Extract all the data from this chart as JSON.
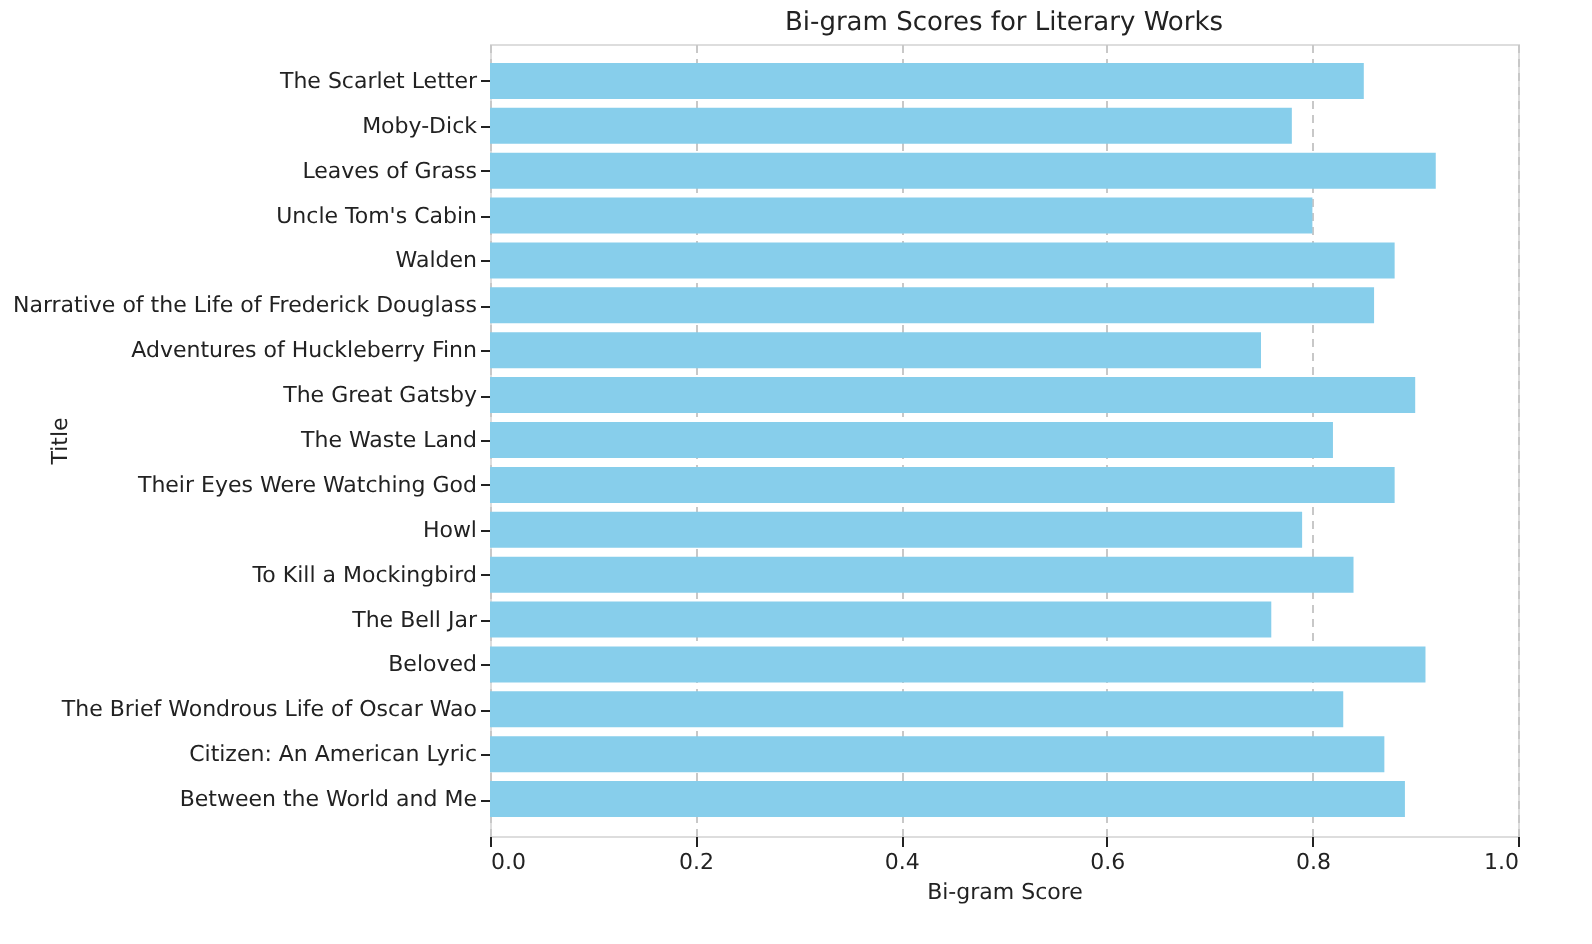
{
  "chart_data": {
    "type": "bar",
    "orientation": "horizontal",
    "title": "Bi-gram Scores for Literary Works",
    "xlabel": "Bi-gram Score",
    "ylabel": "Title",
    "categories": [
      "The Scarlet Letter",
      "Moby-Dick",
      "Leaves of Grass",
      "Uncle Tom's Cabin",
      "Walden",
      "Narrative of the Life of Frederick Douglass",
      "Adventures of Huckleberry Finn",
      "The Great Gatsby",
      "The Waste Land",
      "Their Eyes Were Watching God",
      "Howl",
      "To Kill a Mockingbird",
      "The Bell Jar",
      "Beloved",
      "The Brief Wondrous Life of Oscar Wao",
      "Citizen: An American Lyric",
      "Between the World and Me"
    ],
    "values": [
      0.85,
      0.78,
      0.92,
      0.8,
      0.88,
      0.86,
      0.75,
      0.9,
      0.82,
      0.88,
      0.79,
      0.84,
      0.76,
      0.91,
      0.83,
      0.87,
      0.89
    ],
    "color": "#87ceeb",
    "xlim": [
      0.0,
      1.0
    ],
    "xticks": [
      {
        "value": 0.0,
        "label": "0.0"
      },
      0.2,
      0.4,
      0.6,
      0.8,
      {
        "value": 1.0,
        "label": "1.0"
      }
    ],
    "grid": "x"
  }
}
